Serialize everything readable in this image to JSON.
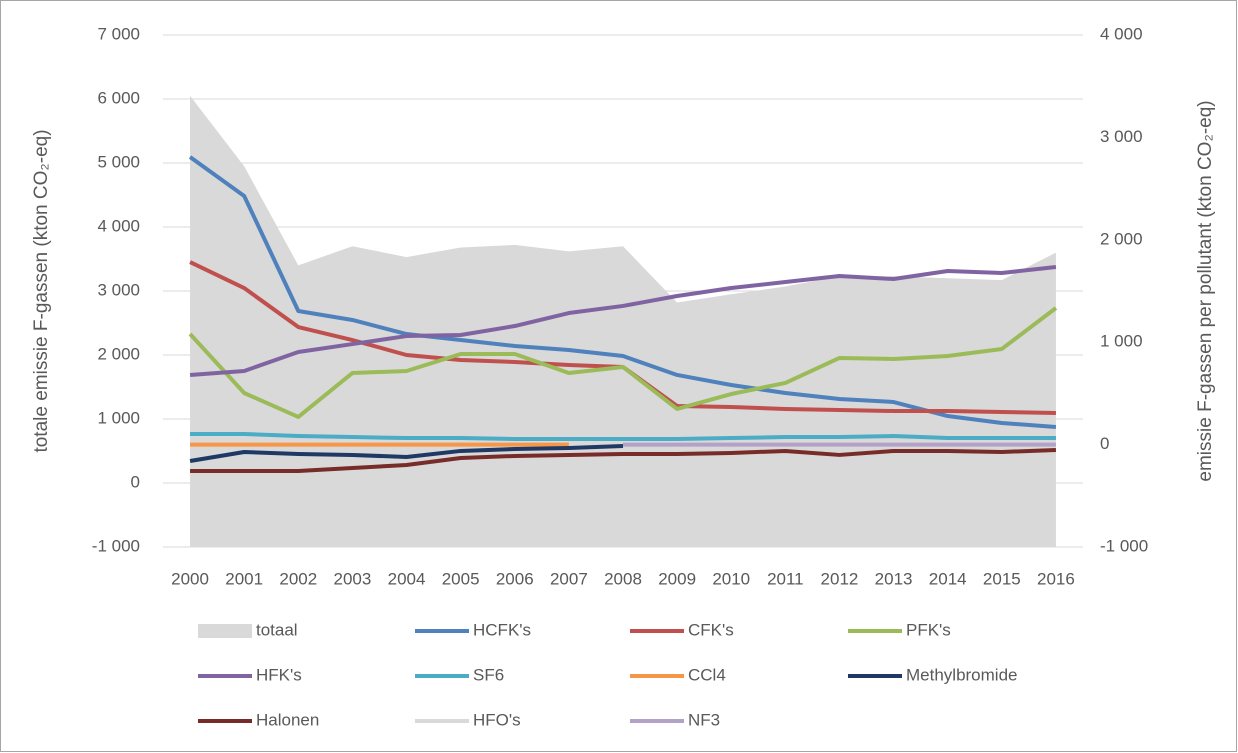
{
  "chart_data": {
    "type": "line",
    "categories": [
      "2000",
      "2001",
      "2002",
      "2003",
      "2004",
      "2005",
      "2006",
      "2007",
      "2008",
      "2009",
      "2010",
      "2011",
      "2012",
      "2013",
      "2014",
      "2015",
      "2016"
    ],
    "y_label": "totale emissie F-gassen (kton CO₂-eq)",
    "y2_label": "emissie F-gassen per pollutant (kton CO₂-eq)",
    "ylim": [
      -1000,
      7000
    ],
    "yticks": [
      {
        "value": -1000,
        "label": "-1 000"
      },
      0,
      {
        "value": 1000,
        "label": "1 000"
      },
      {
        "value": 2000,
        "label": "2 000"
      },
      {
        "value": 3000,
        "label": "3 000"
      },
      {
        "value": 4000,
        "label": "4 000"
      },
      {
        "value": 5000,
        "label": "5 000"
      },
      {
        "value": 6000,
        "label": "6 000"
      },
      {
        "value": 7000,
        "label": "7 000"
      }
    ],
    "y2lim": [
      -1000,
      4000
    ],
    "y2ticks": [
      {
        "value": -1000,
        "label": "-1 000"
      },
      0,
      {
        "value": 1000,
        "label": "1 000"
      },
      {
        "value": 2000,
        "label": "2 000"
      },
      {
        "value": 3000,
        "label": "3 000"
      },
      {
        "value": 4000,
        "label": "4 000"
      }
    ],
    "grid": true,
    "legend": "bottom",
    "series": [
      {
        "name": "totaal",
        "color": "#d9d9d9",
        "style": "area",
        "axis": "y",
        "values": [
          6050,
          4950,
          3400,
          3700,
          3530,
          3680,
          3720,
          3620,
          3700,
          2820,
          2950,
          3070,
          3230,
          3230,
          3200,
          3170,
          3600
        ]
      },
      {
        "name": "HCFK's",
        "color": "#4f81bd",
        "style": "line",
        "axis": "y2",
        "values": [
          2808,
          2428,
          1305,
          1217,
          1080,
          1021,
          963,
          924,
          865,
          680,
          582,
          504,
          445,
          416,
          279,
          211,
          172
        ]
      },
      {
        "name": "CFK's",
        "color": "#c0504d",
        "style": "line",
        "axis": "y2",
        "values": [
          1783,
          1529,
          1148,
          1021,
          875,
          826,
          807,
          777,
          758,
          377,
          367,
          348,
          338,
          328,
          328,
          318,
          309
        ]
      },
      {
        "name": "PFK's",
        "color": "#9bbb59",
        "style": "line",
        "axis": "y2",
        "values": [
          1080,
          504,
          270,
          699,
          719,
          885,
          885,
          699,
          758,
          348,
          494,
          602,
          846,
          836,
          865,
          934,
          1334
        ]
      },
      {
        "name": "HFK's",
        "color": "#8064a2",
        "style": "line",
        "axis": "y2",
        "values": [
          680,
          719,
          904,
          982,
          1060,
          1070,
          1158,
          1285,
          1354,
          1451,
          1529,
          1588,
          1646,
          1617,
          1695,
          1676,
          1734
        ]
      },
      {
        "name": "SF6",
        "color": "#4bacc6",
        "style": "line",
        "axis": "y2",
        "values": [
          104,
          104,
          84,
          74,
          64,
          64,
          55,
          55,
          55,
          55,
          64,
          74,
          74,
          84,
          64,
          64,
          64
        ]
      },
      {
        "name": "CCl4",
        "color": "#f79646",
        "style": "line",
        "axis": "y2",
        "values": [
          0,
          0,
          0,
          0,
          0,
          0,
          0,
          0,
          null,
          null,
          null,
          null,
          null,
          null,
          null,
          null,
          null
        ]
      },
      {
        "name": "Methylbromide",
        "color": "#1f3864",
        "style": "line",
        "axis": "y2",
        "values": [
          -160,
          -72,
          -92,
          -101,
          -121,
          -62,
          -43,
          -33,
          -14,
          null,
          null,
          null,
          null,
          null,
          null,
          null,
          null
        ]
      },
      {
        "name": "Halonen",
        "color": "#772c2a",
        "style": "line",
        "axis": "y2",
        "values": [
          -258,
          -258,
          -258,
          -228,
          -199,
          -131,
          -111,
          -101,
          -92,
          -92,
          -82,
          -62,
          -101,
          -62,
          -62,
          -72,
          -53
        ]
      },
      {
        "name": "HFO's",
        "color": "#d9d9d9",
        "style": "line",
        "axis": "y2",
        "values": [
          null,
          null,
          null,
          null,
          null,
          null,
          null,
          null,
          null,
          null,
          null,
          0,
          0,
          0,
          0,
          0,
          0
        ]
      },
      {
        "name": "NF3",
        "color": "#b3a2c7",
        "style": "line",
        "axis": "y2",
        "values": [
          null,
          null,
          null,
          null,
          null,
          null,
          null,
          null,
          0,
          0,
          0,
          0,
          0,
          0,
          0,
          0,
          0
        ]
      }
    ]
  }
}
